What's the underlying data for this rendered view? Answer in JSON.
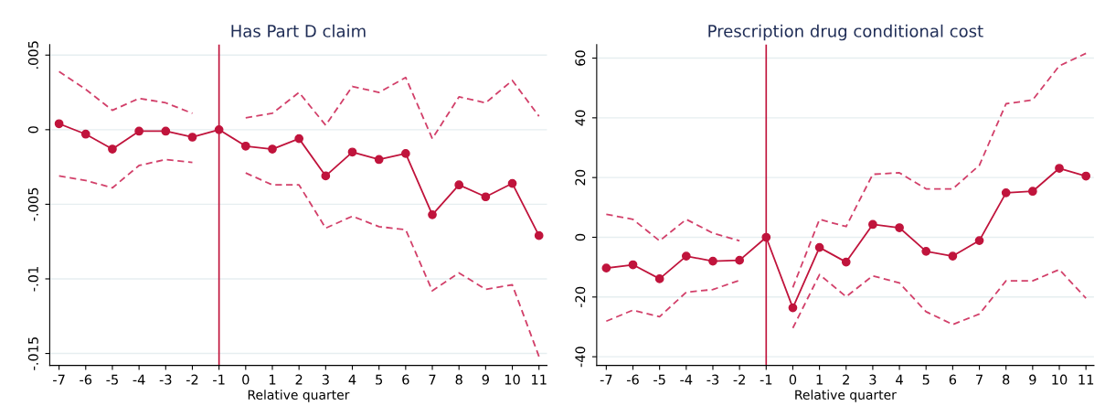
{
  "chart_data": [
    {
      "type": "line",
      "title": "Has Part D claim",
      "xlabel": "Relative quarter",
      "x": [
        -7,
        -6,
        -5,
        -4,
        -3,
        -2,
        -1,
        0,
        1,
        2,
        3,
        4,
        5,
        6,
        7,
        8,
        9,
        10,
        11
      ],
      "series": [
        {
          "color": "#c0143c",
          "marker": "circle",
          "line_style": "solid",
          "values": [
            0.0004,
            -0.0003,
            -0.0013,
            -0.0001,
            -0.0001,
            -0.0005,
            0,
            -0.0011,
            -0.0013,
            -0.0006,
            -0.0031,
            -0.0015,
            -0.002,
            -0.0016,
            -0.0057,
            -0.0037,
            -0.0045,
            -0.0036,
            -0.0071
          ]
        },
        {
          "color": "#d2406a",
          "marker": "none",
          "line_style": "dashed",
          "values": [
            0.0039,
            0.0027,
            0.0013,
            0.0021,
            0.0018,
            0.0011,
            null,
            0.0008,
            0.0011,
            0.0025,
            0.0003,
            0.0029,
            0.0025,
            0.0035,
            -0.0006,
            0.0022,
            0.0018,
            0.0033,
            0.0009
          ]
        },
        {
          "color": "#d2406a",
          "marker": "none",
          "line_style": "dashed",
          "values": [
            -0.0031,
            -0.0034,
            -0.0039,
            -0.0024,
            -0.002,
            -0.0022,
            null,
            -0.0029,
            -0.0037,
            -0.0037,
            -0.0066,
            -0.0058,
            -0.0065,
            -0.0067,
            -0.0108,
            -0.0096,
            -0.0107,
            -0.0104,
            -0.0152
          ]
        }
      ],
      "xlim": [
        -7.35,
        11.3
      ],
      "xticks": [
        -7,
        -6,
        -5,
        -4,
        -3,
        -2,
        -1,
        0,
        1,
        2,
        3,
        4,
        5,
        6,
        7,
        8,
        9,
        10,
        11
      ],
      "ylim": [
        -0.0158,
        0.0057
      ],
      "yticks": [
        {
          "value": 0.005,
          "label": ".005"
        },
        0,
        {
          "value": -0.005,
          "label": "-.005"
        },
        {
          "value": -0.01,
          "label": "-.01"
        },
        {
          "value": -0.015,
          "label": "-.015"
        }
      ],
      "ref_lines": [
        {
          "axis": "x",
          "value": -1,
          "color": "#c0143c"
        }
      ],
      "grid": "y",
      "legend": false
    },
    {
      "type": "line",
      "title": "Prescription drug conditional cost",
      "xlabel": "Relative quarter",
      "x": [
        -7,
        -6,
        -5,
        -4,
        -3,
        -2,
        -1,
        0,
        1,
        2,
        3,
        4,
        5,
        6,
        7,
        8,
        9,
        10,
        11
      ],
      "series": [
        {
          "color": "#c0143c",
          "marker": "circle",
          "line_style": "solid",
          "values": [
            -10.3,
            -9.2,
            -13.9,
            -6.3,
            -8.0,
            -7.7,
            0,
            -23.6,
            -3.4,
            -8.3,
            4.3,
            3.2,
            -4.7,
            -6.3,
            -1.1,
            14.9,
            15.4,
            23.1,
            20.5
          ]
        },
        {
          "color": "#d2406a",
          "marker": "none",
          "line_style": "dashed",
          "values": [
            7.7,
            6.0,
            -1.2,
            6.0,
            1.4,
            -1.2,
            null,
            -16.8,
            6.0,
            3.6,
            21.1,
            21.6,
            16.2,
            16.2,
            24.1,
            44.7,
            46.0,
            57.4,
            61.6
          ]
        },
        {
          "color": "#d2406a",
          "marker": "none",
          "line_style": "dashed",
          "values": [
            -28.1,
            -24.4,
            -26.6,
            -18.4,
            -17.5,
            -14.4,
            null,
            -30.4,
            -12.5,
            -19.9,
            -12.9,
            -15.3,
            -24.9,
            -29.2,
            -25.7,
            -14.6,
            -14.6,
            -10.8,
            -20.4
          ]
        }
      ],
      "xlim": [
        -7.36,
        11.3
      ],
      "xticks": [
        -7,
        -6,
        -5,
        -4,
        -3,
        -2,
        -1,
        0,
        1,
        2,
        3,
        4,
        5,
        6,
        7,
        8,
        9,
        10,
        11
      ],
      "ylim": [
        -42.9,
        64.5
      ],
      "yticks": [
        60,
        40,
        20,
        0,
        -20,
        -40
      ],
      "ref_lines": [
        {
          "axis": "x",
          "value": -1,
          "color": "#c0143c"
        }
      ],
      "grid": "y",
      "legend": false
    }
  ]
}
